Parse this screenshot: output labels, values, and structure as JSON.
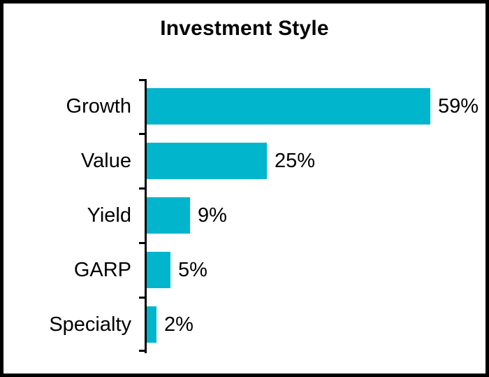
{
  "chart_data": {
    "type": "bar",
    "orientation": "horizontal",
    "title": "Investment Style",
    "categories": [
      "Growth",
      "Value",
      "Yield",
      "GARP",
      "Specialty"
    ],
    "values": [
      59,
      25,
      9,
      5,
      2
    ],
    "value_labels": [
      "59%",
      "25%",
      "9%",
      "5%",
      "2%"
    ],
    "xlabel": "",
    "ylabel": "",
    "legend": null,
    "grid": false,
    "x_tick_labels_visible": false,
    "bars_start_at_axis": true
  },
  "colors": {
    "bar": "#00B5CC",
    "text": "#000000",
    "axis": "#000000",
    "frame_border": "#000000",
    "background": "#FFFFFF"
  }
}
